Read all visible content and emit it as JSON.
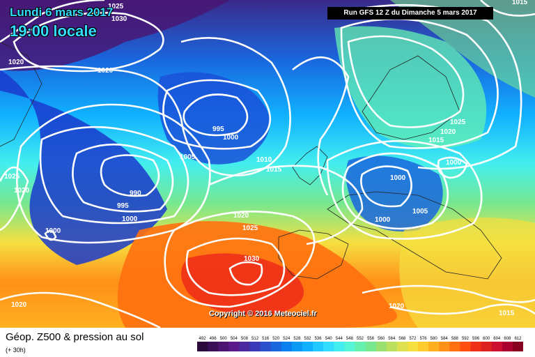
{
  "header": {
    "date": "Lundi 6 mars 2017",
    "local_time": "19:00 locale",
    "run_info": "Run GFS 12 Z du Dimanche 5 mars 2017"
  },
  "map": {
    "copyright": "Copyright © 2016 Meteociel.fr",
    "pressure_labels": [
      "1025",
      "1030",
      "1015",
      "1020",
      "1020",
      "995",
      "1000",
      "1005",
      "1010",
      "1015",
      "1025",
      "1020",
      "1015",
      "1000",
      "1000",
      "1025",
      "1020",
      "990",
      "995",
      "1000",
      "1000",
      "1020",
      "1025",
      "1030",
      "1005",
      "1000",
      "1020",
      "1020",
      "1015"
    ]
  },
  "footer": {
    "title": "Géop. Z500 & pression au sol",
    "lead_time": "(+ 30h)"
  },
  "legend": {
    "values": [
      "492",
      "496",
      "500",
      "504",
      "508",
      "512",
      "516",
      "520",
      "524",
      "528",
      "532",
      "536",
      "540",
      "544",
      "548",
      "552",
      "556",
      "560",
      "564",
      "568",
      "572",
      "576",
      "580",
      "584",
      "588",
      "592",
      "596",
      "600",
      "604",
      "608",
      "612"
    ],
    "colors": [
      "#2a0a3a",
      "#3a0f55",
      "#4a1470",
      "#5a1a8a",
      "#4b2aa0",
      "#3a3ab8",
      "#2a50cc",
      "#1a66dd",
      "#0a80ee",
      "#0a99f5",
      "#10b0ff",
      "#22c8ff",
      "#33ddff",
      "#44eeee",
      "#55f5d5",
      "#66f0b0",
      "#77e890",
      "#99e070",
      "#bbe060",
      "#dde050",
      "#f5e040",
      "#ffcc30",
      "#ffb020",
      "#ff9018",
      "#ff7010",
      "#ff5010",
      "#ee3018",
      "#dd2020",
      "#cc1030",
      "#aa0030",
      "#880020"
    ]
  }
}
